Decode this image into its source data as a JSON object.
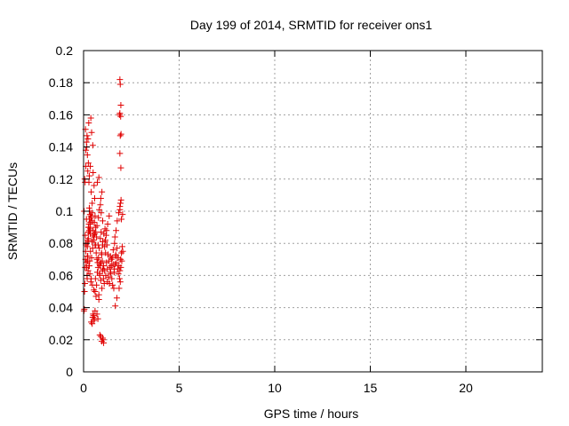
{
  "chart_data": {
    "type": "scatter",
    "title": "Day 199 of 2014, SRMTID for receiver ons1",
    "xlabel": "GPS time / hours",
    "ylabel": "SRMTID / TECUs",
    "xlim": [
      0,
      24
    ],
    "ylim": [
      0,
      0.2
    ],
    "xticks": [
      0,
      5,
      10,
      15,
      20
    ],
    "xtick_labels": [
      "0",
      "5",
      "10",
      "15",
      "20"
    ],
    "yticks": [
      0,
      0.02,
      0.04,
      0.06,
      0.08,
      0.1,
      0.12,
      0.14,
      0.16,
      0.18,
      0.2
    ],
    "ytick_labels": [
      "0",
      "0.02",
      "0.04",
      "0.06",
      "0.08",
      "0.1",
      "0.12",
      "0.14",
      "0.16",
      "0.18",
      "0.2"
    ],
    "grid": true,
    "marker": "+",
    "color": "#e00000",
    "series": [
      {
        "name": "ons1",
        "x": [
          0.02,
          0.05,
          0.08,
          0.1,
          0.12,
          0.15,
          0.03,
          0.06,
          0.09,
          0.11,
          0.14,
          0.18,
          0.2,
          0.22,
          0.25,
          0.04,
          0.07,
          0.13,
          0.16,
          0.19,
          0.21,
          0.24,
          0.26,
          0.28,
          0.3,
          0.08,
          0.12,
          0.17,
          0.23,
          0.27,
          0.2,
          0.25,
          0.3,
          0.35,
          0.4,
          0.45,
          0.5,
          0.55,
          0.6,
          0.22,
          0.28,
          0.33,
          0.38,
          0.42,
          0.48,
          0.52,
          0.58,
          0.62,
          0.24,
          0.32,
          0.36,
          0.44,
          0.5,
          0.56,
          0.6,
          0.64,
          0.3,
          0.4,
          0.46,
          0.54,
          0.1,
          0.15,
          0.2,
          0.25,
          0.3,
          0.12,
          0.18,
          0.22,
          0.28,
          0.35,
          0.4,
          0.45,
          0.38,
          0.42,
          0.48,
          0.5,
          0.55,
          0.58,
          0.35,
          0.45,
          0.6,
          0.65,
          0.7,
          0.75,
          0.8,
          0.85,
          0.9,
          0.95,
          1.0,
          1.05,
          0.62,
          0.68,
          0.72,
          0.78,
          0.82,
          0.88,
          0.92,
          0.98,
          1.02,
          1.08,
          0.64,
          0.7,
          0.76,
          0.84,
          0.9,
          0.96,
          1.04,
          1.1,
          0.66,
          0.74,
          0.8,
          0.86,
          0.94,
          1.0,
          1.06,
          0.7,
          0.78,
          0.82,
          0.9,
          0.96,
          0.72,
          0.8,
          0.88,
          0.92,
          1.0,
          1.12,
          0.68,
          0.76,
          0.84,
          0.98,
          1.1,
          1.15,
          1.2,
          1.25,
          1.3,
          1.35,
          1.4,
          1.45,
          1.5,
          1.55,
          1.12,
          1.18,
          1.22,
          1.28,
          1.32,
          1.38,
          1.42,
          1.48,
          1.52,
          1.58,
          1.14,
          1.2,
          1.26,
          1.34,
          1.4,
          1.46,
          1.54,
          1.6,
          1.16,
          1.24,
          1.6,
          1.65,
          1.7,
          1.75,
          1.8,
          1.85,
          1.9,
          1.95,
          2.0,
          2.05,
          1.62,
          1.68,
          1.72,
          1.78,
          1.82,
          1.88,
          1.92,
          1.98,
          2.02,
          1.64,
          1.7,
          1.76,
          1.84,
          1.9,
          1.96,
          2.04,
          1.66,
          1.74,
          1.86,
          1.94,
          0.9,
          0.95,
          1.0,
          1.05,
          0.85,
          1.02,
          0.45,
          0.48,
          0.5,
          0.55,
          0.6,
          0.4,
          0.52,
          0.57,
          0.28,
          0.3,
          0.32,
          0.34,
          0.36,
          0.38,
          0.3,
          0.35,
          1.9,
          1.92,
          1.95,
          1.88,
          1.9,
          1.94,
          1.96,
          1.92,
          1.9,
          1.95,
          1.93,
          1.9,
          1.98
        ],
        "y": [
          0.038,
          0.05,
          0.065,
          0.07,
          0.08,
          0.095,
          0.1,
          0.12,
          0.085,
          0.075,
          0.068,
          0.06,
          0.072,
          0.082,
          0.09,
          0.039,
          0.055,
          0.079,
          0.065,
          0.058,
          0.069,
          0.081,
          0.087,
          0.092,
          0.066,
          0.118,
          0.128,
          0.14,
          0.145,
          0.155,
          0.078,
          0.083,
          0.088,
          0.092,
          0.096,
          0.099,
          0.088,
          0.084,
          0.079,
          0.072,
          0.066,
          0.061,
          0.056,
          0.071,
          0.077,
          0.082,
          0.086,
          0.09,
          0.063,
          0.069,
          0.075,
          0.081,
          0.085,
          0.093,
          0.097,
          0.087,
          0.1,
          0.058,
          0.054,
          0.051,
          0.151,
          0.143,
          0.135,
          0.13,
          0.122,
          0.138,
          0.147,
          0.125,
          0.118,
          0.128,
          0.112,
          0.105,
          0.158,
          0.149,
          0.141,
          0.124,
          0.116,
          0.108,
          0.089,
          0.094,
          0.05,
          0.047,
          0.036,
          0.033,
          0.045,
          0.061,
          0.068,
          0.073,
          0.079,
          0.066,
          0.058,
          0.054,
          0.062,
          0.071,
          0.077,
          0.083,
          0.087,
          0.069,
          0.064,
          0.055,
          0.079,
          0.07,
          0.065,
          0.06,
          0.057,
          0.052,
          0.058,
          0.063,
          0.074,
          0.068,
          0.048,
          0.066,
          0.074,
          0.081,
          0.086,
          0.091,
          0.096,
          0.101,
          0.108,
          0.112,
          0.118,
          0.121,
          0.104,
          0.099,
          0.094,
          0.089,
          0.084,
          0.079,
          0.067,
          0.063,
          0.078,
          0.074,
          0.068,
          0.064,
          0.059,
          0.055,
          0.061,
          0.066,
          0.071,
          0.076,
          0.081,
          0.085,
          0.079,
          0.073,
          0.069,
          0.065,
          0.062,
          0.058,
          0.054,
          0.052,
          0.082,
          0.088,
          0.092,
          0.097,
          0.072,
          0.07,
          0.067,
          0.064,
          0.06,
          0.056,
          0.062,
          0.067,
          0.072,
          0.077,
          0.071,
          0.066,
          0.063,
          0.065,
          0.069,
          0.075,
          0.08,
          0.073,
          0.068,
          0.064,
          0.061,
          0.058,
          0.056,
          0.074,
          0.078,
          0.084,
          0.088,
          0.094,
          0.099,
          0.103,
          0.107,
          0.098,
          0.041,
          0.046,
          0.052,
          0.07,
          0.022,
          0.019,
          0.021,
          0.018,
          0.023,
          0.02,
          0.03,
          0.034,
          0.036,
          0.032,
          0.038,
          0.031,
          0.035,
          0.033,
          0.09,
          0.095,
          0.1,
          0.098,
          0.093,
          0.097,
          0.102,
          0.086,
          0.182,
          0.179,
          0.166,
          0.16,
          0.161,
          0.159,
          0.148,
          0.147,
          0.136,
          0.127,
          0.105,
          0.101,
          0.095
        ]
      }
    ]
  }
}
